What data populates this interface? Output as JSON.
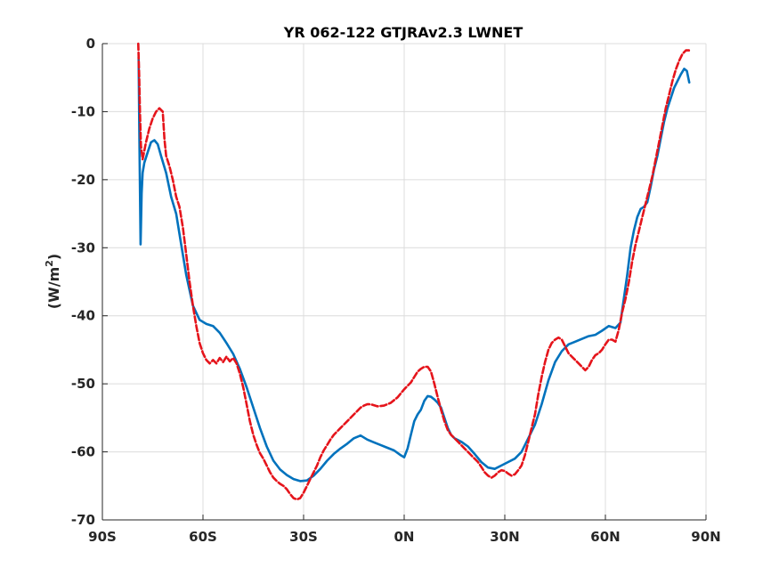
{
  "chart_data": {
    "type": "line",
    "title": "YR 062-122 GTJRAv2.3 LWNET",
    "xlabel": "",
    "ylabel": "(W/m",
    "ylabel_sup": "2",
    "ylabel_close": ")",
    "xlim": [
      -90,
      90
    ],
    "ylim": [
      -70,
      0
    ],
    "xticks": [
      -90,
      -60,
      -30,
      0,
      30,
      60,
      90
    ],
    "xtick_labels": [
      "90S",
      "60S",
      "30S",
      "0N",
      "30N",
      "60N",
      "90N"
    ],
    "yticks": [
      0,
      -10,
      -20,
      -30,
      -40,
      -50,
      -60,
      -70
    ],
    "ytick_labels": [
      "0",
      "-10",
      "-20",
      "-30",
      "-40",
      "-50",
      "-60",
      "-70"
    ],
    "grid": true,
    "colors": {
      "series_blue": "#0072BD",
      "series_red": "#E5141B",
      "grid": "#DCDCDC",
      "axis": "#262626"
    },
    "series": [
      {
        "color": "#0072BD",
        "style": "solid",
        "points": [
          [
            -79.2,
            -2
          ],
          [
            -79.0,
            -12
          ],
          [
            -78.6,
            -29.5
          ],
          [
            -78.3,
            -22
          ],
          [
            -78.0,
            -19
          ],
          [
            -77.5,
            -17.5
          ],
          [
            -76.5,
            -16
          ],
          [
            -75.5,
            -14.5
          ],
          [
            -74.5,
            -14.2
          ],
          [
            -73.5,
            -14.8
          ],
          [
            -72.5,
            -16.5
          ],
          [
            -71.0,
            -19
          ],
          [
            -69.5,
            -22.5
          ],
          [
            -68.0,
            -25
          ],
          [
            -66.5,
            -29.5
          ],
          [
            -65.0,
            -34
          ],
          [
            -63.0,
            -38.5
          ],
          [
            -61.0,
            -40.6
          ],
          [
            -59.0,
            -41.2
          ],
          [
            -57.0,
            -41.5
          ],
          [
            -55.0,
            -42.5
          ],
          [
            -53.0,
            -44
          ],
          [
            -51.0,
            -45.6
          ],
          [
            -49.0,
            -47.8
          ],
          [
            -47.0,
            -50.5
          ],
          [
            -45.0,
            -53.5
          ],
          [
            -43.0,
            -56.5
          ],
          [
            -41.0,
            -59.2
          ],
          [
            -39.0,
            -61.3
          ],
          [
            -37.0,
            -62.6
          ],
          [
            -35.0,
            -63.4
          ],
          [
            -33.0,
            -64
          ],
          [
            -31.0,
            -64.3
          ],
          [
            -29.0,
            -64.2
          ],
          [
            -27.0,
            -63.5
          ],
          [
            -25.0,
            -62.5
          ],
          [
            -23.0,
            -61.3
          ],
          [
            -21.0,
            -60.3
          ],
          [
            -19.0,
            -59.5
          ],
          [
            -17.0,
            -58.8
          ],
          [
            -15.0,
            -58
          ],
          [
            -13.0,
            -57.6
          ],
          [
            -11.0,
            -58.2
          ],
          [
            -9.0,
            -58.6
          ],
          [
            -7.0,
            -59
          ],
          [
            -5.0,
            -59.4
          ],
          [
            -3.0,
            -59.8
          ],
          [
            -1.0,
            -60.5
          ],
          [
            0.0,
            -60.8
          ],
          [
            1.0,
            -59.5
          ],
          [
            2.0,
            -57.5
          ],
          [
            3.0,
            -55.5
          ],
          [
            4.0,
            -54.5
          ],
          [
            5.0,
            -53.8
          ],
          [
            6.0,
            -52.5
          ],
          [
            7.0,
            -51.8
          ],
          [
            8.0,
            -51.9
          ],
          [
            9.0,
            -52.3
          ],
          [
            10.0,
            -52.8
          ],
          [
            11.0,
            -53.5
          ],
          [
            12.0,
            -55
          ],
          [
            13.0,
            -56.5
          ],
          [
            14.0,
            -57.5
          ],
          [
            15.0,
            -58
          ],
          [
            17.0,
            -58.5
          ],
          [
            19.0,
            -59.2
          ],
          [
            21.0,
            -60.3
          ],
          [
            23.0,
            -61.5
          ],
          [
            25.0,
            -62.3
          ],
          [
            27.0,
            -62.5
          ],
          [
            29.0,
            -62
          ],
          [
            31.0,
            -61.5
          ],
          [
            33.0,
            -61
          ],
          [
            35.0,
            -60
          ],
          [
            37.0,
            -58
          ],
          [
            39.0,
            -56
          ],
          [
            41.0,
            -53
          ],
          [
            43.0,
            -49.5
          ],
          [
            45.0,
            -46.8
          ],
          [
            47.0,
            -45.2
          ],
          [
            49.0,
            -44.2
          ],
          [
            51.0,
            -43.8
          ],
          [
            53.0,
            -43.4
          ],
          [
            55.0,
            -43
          ],
          [
            57.0,
            -42.8
          ],
          [
            59.0,
            -42.2
          ],
          [
            61.0,
            -41.5
          ],
          [
            63.0,
            -41.8
          ],
          [
            64.5,
            -41
          ],
          [
            65.5,
            -37.5
          ],
          [
            66.5,
            -34
          ],
          [
            67.5,
            -30
          ],
          [
            68.5,
            -27.5
          ],
          [
            69.5,
            -25.5
          ],
          [
            70.5,
            -24.3
          ],
          [
            71.5,
            -24
          ],
          [
            72.5,
            -23.3
          ],
          [
            73.5,
            -21
          ],
          [
            74.5,
            -18.5
          ],
          [
            75.5,
            -16.5
          ],
          [
            76.5,
            -14
          ],
          [
            77.5,
            -11.5
          ],
          [
            78.5,
            -9.5
          ],
          [
            79.5,
            -8
          ],
          [
            80.5,
            -6.5
          ],
          [
            81.5,
            -5.5
          ],
          [
            82.5,
            -4.5
          ],
          [
            83.5,
            -3.7
          ],
          [
            84.3,
            -4
          ],
          [
            85.0,
            -5.7
          ]
        ]
      },
      {
        "color": "#E5141B",
        "style": "dashed",
        "points": [
          [
            -79.3,
            0
          ],
          [
            -79.0,
            -5
          ],
          [
            -78.8,
            -10
          ],
          [
            -78.5,
            -15
          ],
          [
            -78.0,
            -17
          ],
          [
            -77.0,
            -14.5
          ],
          [
            -76.0,
            -12.5
          ],
          [
            -75.0,
            -11
          ],
          [
            -74.0,
            -10
          ],
          [
            -73.0,
            -9.5
          ],
          [
            -72.0,
            -10
          ],
          [
            -71.5,
            -14
          ],
          [
            -71.0,
            -16.5
          ],
          [
            -70.0,
            -18
          ],
          [
            -69.0,
            -20
          ],
          [
            -68.0,
            -22.5
          ],
          [
            -67.0,
            -24
          ],
          [
            -66.0,
            -27
          ],
          [
            -65.0,
            -31
          ],
          [
            -64.0,
            -35
          ],
          [
            -63.0,
            -38.5
          ],
          [
            -62.0,
            -41.5
          ],
          [
            -61.0,
            -44
          ],
          [
            -60.0,
            -45.5
          ],
          [
            -59.0,
            -46.5
          ],
          [
            -58.0,
            -47
          ],
          [
            -57.0,
            -46.5
          ],
          [
            -56.0,
            -47
          ],
          [
            -55.0,
            -46.2
          ],
          [
            -54.0,
            -46.8
          ],
          [
            -53.0,
            -46
          ],
          [
            -52.0,
            -46.7
          ],
          [
            -51.0,
            -46.2
          ],
          [
            -50.0,
            -47
          ],
          [
            -49.0,
            -48.5
          ],
          [
            -48.0,
            -50.5
          ],
          [
            -47.0,
            -53
          ],
          [
            -46.0,
            -55.5
          ],
          [
            -45.0,
            -57.5
          ],
          [
            -44.0,
            -59
          ],
          [
            -43.0,
            -60.2
          ],
          [
            -42.0,
            -61
          ],
          [
            -41.0,
            -62
          ],
          [
            -40.0,
            -63
          ],
          [
            -39.0,
            -63.8
          ],
          [
            -38.0,
            -64.3
          ],
          [
            -37.0,
            -64.7
          ],
          [
            -36.0,
            -65
          ],
          [
            -35.0,
            -65.5
          ],
          [
            -34.0,
            -66.2
          ],
          [
            -33.0,
            -66.8
          ],
          [
            -32.0,
            -67
          ],
          [
            -31.0,
            -66.8
          ],
          [
            -30.0,
            -66
          ],
          [
            -29.0,
            -65
          ],
          [
            -28.0,
            -64
          ],
          [
            -27.0,
            -63
          ],
          [
            -26.0,
            -62
          ],
          [
            -25.0,
            -60.8
          ],
          [
            -24.0,
            -59.8
          ],
          [
            -23.0,
            -59
          ],
          [
            -22.0,
            -58.2
          ],
          [
            -21.0,
            -57.5
          ],
          [
            -20.0,
            -57
          ],
          [
            -19.0,
            -56.5
          ],
          [
            -18.0,
            -56
          ],
          [
            -17.0,
            -55.5
          ],
          [
            -16.0,
            -55
          ],
          [
            -15.0,
            -54.5
          ],
          [
            -14.0,
            -54
          ],
          [
            -13.0,
            -53.5
          ],
          [
            -12.0,
            -53.2
          ],
          [
            -11.0,
            -53
          ],
          [
            -10.0,
            -53
          ],
          [
            -8.0,
            -53.3
          ],
          [
            -6.0,
            -53.2
          ],
          [
            -4.0,
            -52.8
          ],
          [
            -2.0,
            -52
          ],
          [
            0.0,
            -50.8
          ],
          [
            2.0,
            -49.8
          ],
          [
            3.0,
            -49
          ],
          [
            4.0,
            -48.2
          ],
          [
            5.0,
            -47.8
          ],
          [
            6.0,
            -47.5
          ],
          [
            7.0,
            -47.5
          ],
          [
            8.0,
            -48.2
          ],
          [
            9.0,
            -50
          ],
          [
            10.0,
            -52
          ],
          [
            11.0,
            -53.8
          ],
          [
            12.0,
            -55.5
          ],
          [
            13.0,
            -56.8
          ],
          [
            14.0,
            -57.5
          ],
          [
            15.0,
            -58
          ],
          [
            16.0,
            -58.5
          ],
          [
            17.0,
            -59
          ],
          [
            18.0,
            -59.5
          ],
          [
            19.0,
            -60
          ],
          [
            20.0,
            -60.5
          ],
          [
            21.0,
            -61
          ],
          [
            22.0,
            -61.5
          ],
          [
            23.0,
            -62.2
          ],
          [
            24.0,
            -63
          ],
          [
            25.0,
            -63.5
          ],
          [
            26.0,
            -63.8
          ],
          [
            27.0,
            -63.5
          ],
          [
            28.0,
            -63
          ],
          [
            29.0,
            -62.7
          ],
          [
            30.0,
            -62.8
          ],
          [
            31.0,
            -63.2
          ],
          [
            32.0,
            -63.5
          ],
          [
            33.0,
            -63.3
          ],
          [
            34.0,
            -62.7
          ],
          [
            35.0,
            -62
          ],
          [
            36.0,
            -60.5
          ],
          [
            37.0,
            -58.5
          ],
          [
            38.0,
            -56.5
          ],
          [
            39.0,
            -54.5
          ],
          [
            40.0,
            -51.5
          ],
          [
            41.0,
            -49
          ],
          [
            42.0,
            -46.8
          ],
          [
            43.0,
            -45
          ],
          [
            44.0,
            -44
          ],
          [
            45.0,
            -43.5
          ],
          [
            46.0,
            -43.2
          ],
          [
            47.0,
            -43.5
          ],
          [
            48.0,
            -44.5
          ],
          [
            49.0,
            -45.5
          ],
          [
            50.0,
            -46
          ],
          [
            51.0,
            -46.5
          ],
          [
            52.0,
            -47
          ],
          [
            53.0,
            -47.5
          ],
          [
            54.0,
            -48
          ],
          [
            55.0,
            -47.5
          ],
          [
            56.0,
            -46.5
          ],
          [
            57.0,
            -45.8
          ],
          [
            58.0,
            -45.5
          ],
          [
            59.0,
            -45
          ],
          [
            60.0,
            -44.2
          ],
          [
            61.0,
            -43.5
          ],
          [
            62.0,
            -43.5
          ],
          [
            63.0,
            -43.8
          ],
          [
            64.0,
            -42
          ],
          [
            65.0,
            -39.5
          ],
          [
            66.0,
            -37.5
          ],
          [
            67.0,
            -35
          ],
          [
            68.0,
            -32
          ],
          [
            69.0,
            -29.5
          ],
          [
            70.0,
            -27.5
          ],
          [
            71.0,
            -25.5
          ],
          [
            72.0,
            -23.5
          ],
          [
            73.0,
            -21.5
          ],
          [
            74.0,
            -19.5
          ],
          [
            75.0,
            -17
          ],
          [
            76.0,
            -14.5
          ],
          [
            77.0,
            -12
          ],
          [
            78.0,
            -9.5
          ],
          [
            79.0,
            -7.5
          ],
          [
            80.0,
            -5.5
          ],
          [
            81.0,
            -3.8
          ],
          [
            82.0,
            -2.5
          ],
          [
            83.0,
            -1.5
          ],
          [
            84.0,
            -1
          ],
          [
            85.0,
            -1
          ]
        ]
      }
    ]
  }
}
